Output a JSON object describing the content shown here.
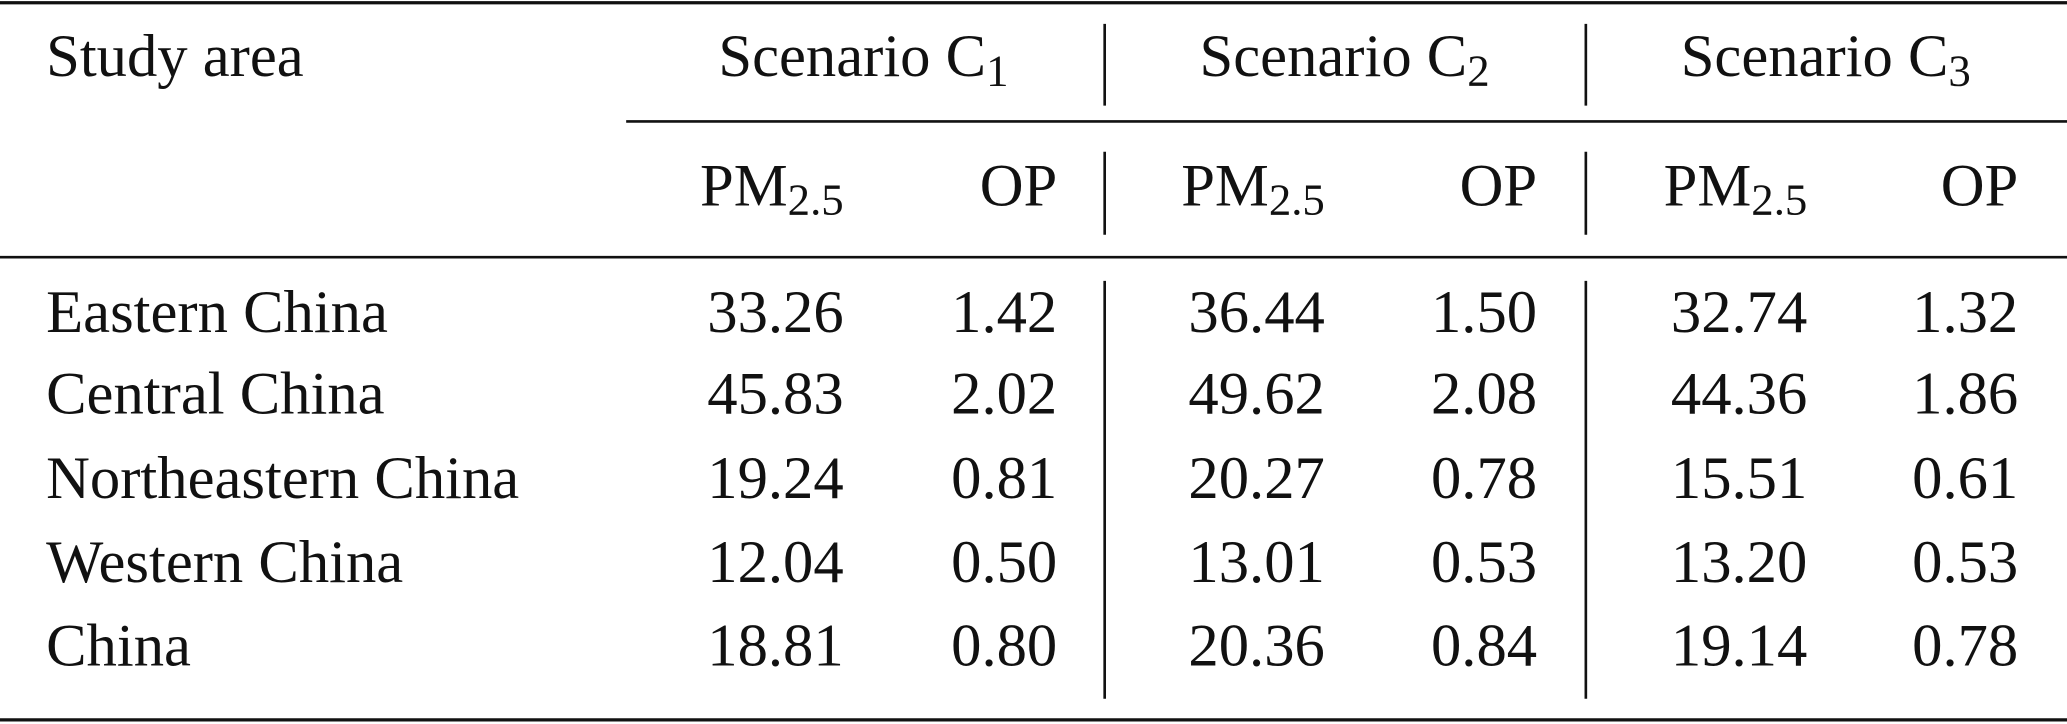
{
  "table": {
    "header": {
      "study_area": "Study area"
    },
    "scenarios": [
      {
        "label": "Scenario C",
        "sub": "1",
        "columns": [
          {
            "label": "PM",
            "sub": "2.5"
          },
          {
            "label": "OP"
          }
        ]
      },
      {
        "label": "Scenario C",
        "sub": "2",
        "columns": [
          {
            "label": "PM",
            "sub": "2.5"
          },
          {
            "label": "OP"
          }
        ]
      },
      {
        "label": "Scenario C",
        "sub": "3",
        "columns": [
          {
            "label": "PM",
            "sub": "2.5"
          },
          {
            "label": "OP"
          }
        ]
      }
    ],
    "rows": [
      {
        "area": "Eastern China",
        "values": [
          "33.26",
          "1.42",
          "36.44",
          "1.50",
          "32.74",
          "1.32"
        ]
      },
      {
        "area": "Central China",
        "values": [
          "45.83",
          "2.02",
          "49.62",
          "2.08",
          "44.36",
          "1.86"
        ]
      },
      {
        "area": "Northeastern China",
        "values": [
          "19.24",
          "0.81",
          "20.27",
          "0.78",
          "15.51",
          "0.61"
        ]
      },
      {
        "area": "Western China",
        "values": [
          "12.04",
          "0.50",
          "13.01",
          "0.53",
          "13.20",
          "0.53"
        ]
      },
      {
        "area": "China",
        "values": [
          "18.81",
          "0.80",
          "20.36",
          "0.84",
          "19.14",
          "0.78"
        ]
      }
    ]
  }
}
